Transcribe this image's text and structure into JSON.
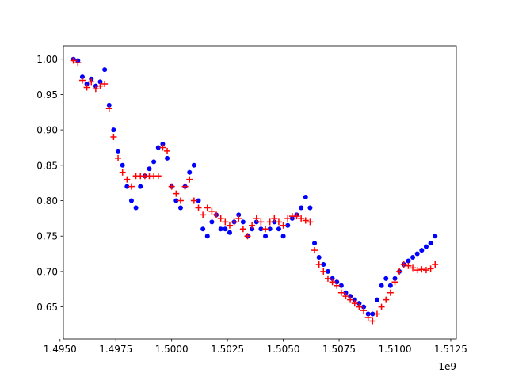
{
  "chart_data": {
    "type": "scatter",
    "title": "",
    "xlabel": "",
    "ylabel": "",
    "x_offset_text": "1e9",
    "xlim": [
      1.49515,
      1.51275
    ],
    "ylim": [
      0.6048,
      1.0187
    ],
    "x_ticks": [
      {
        "value": 1.495,
        "label": "1.4950"
      },
      {
        "value": 1.4975,
        "label": "1.4975"
      },
      {
        "value": 1.5,
        "label": "1.5000"
      },
      {
        "value": 1.5025,
        "label": "1.5025"
      },
      {
        "value": 1.505,
        "label": "1.5050"
      },
      {
        "value": 1.5075,
        "label": "1.5075"
      },
      {
        "value": 1.51,
        "label": "1.5100"
      },
      {
        "value": 1.5125,
        "label": "1.5125"
      }
    ],
    "y_ticks": [
      {
        "value": 0.65,
        "label": "0.65"
      },
      {
        "value": 0.7,
        "label": "0.70"
      },
      {
        "value": 0.75,
        "label": "0.75"
      },
      {
        "value": 0.8,
        "label": "0.80"
      },
      {
        "value": 0.85,
        "label": "0.85"
      },
      {
        "value": 0.9,
        "label": "0.90"
      },
      {
        "value": 0.95,
        "label": "0.95"
      },
      {
        "value": 1.0,
        "label": "1.00"
      }
    ],
    "grid": false,
    "series": [
      {
        "marker": "circle",
        "color": "#0000ff",
        "x": [
          1.4956,
          1.4958,
          1.496,
          1.4962,
          1.4964,
          1.4966,
          1.4968,
          1.497,
          1.4972,
          1.4974,
          1.4976,
          1.4978,
          1.498,
          1.4982,
          1.4984,
          1.4986,
          1.4988,
          1.499,
          1.4992,
          1.4994,
          1.4996,
          1.4998,
          1.5,
          1.5002,
          1.5004,
          1.5006,
          1.5008,
          1.501,
          1.5012,
          1.5014,
          1.5016,
          1.5018,
          1.502,
          1.5022,
          1.5024,
          1.5026,
          1.5028,
          1.503,
          1.5032,
          1.5034,
          1.5036,
          1.5038,
          1.504,
          1.5042,
          1.5044,
          1.5046,
          1.5048,
          1.505,
          1.5052,
          1.5054,
          1.5056,
          1.5058,
          1.506,
          1.5062,
          1.5064,
          1.5066,
          1.5068,
          1.507,
          1.5072,
          1.5074,
          1.5076,
          1.5078,
          1.508,
          1.5082,
          1.5084,
          1.5086,
          1.5088,
          1.509,
          1.5092,
          1.5094,
          1.5096,
          1.5098,
          1.51,
          1.5102,
          1.5104,
          1.5106,
          1.5108,
          1.511,
          1.5112,
          1.5114,
          1.5116,
          1.5118
        ],
        "y": [
          1.0,
          0.998,
          0.975,
          0.965,
          0.972,
          0.962,
          0.968,
          0.985,
          0.935,
          0.9,
          0.87,
          0.85,
          0.82,
          0.8,
          0.79,
          0.82,
          0.835,
          0.845,
          0.855,
          0.875,
          0.88,
          0.86,
          0.82,
          0.8,
          0.79,
          0.82,
          0.84,
          0.85,
          0.8,
          0.76,
          0.75,
          0.77,
          0.78,
          0.76,
          0.76,
          0.755,
          0.77,
          0.78,
          0.77,
          0.75,
          0.76,
          0.77,
          0.76,
          0.75,
          0.76,
          0.77,
          0.76,
          0.75,
          0.765,
          0.775,
          0.78,
          0.79,
          0.805,
          0.79,
          0.74,
          0.72,
          0.71,
          0.7,
          0.69,
          0.685,
          0.68,
          0.67,
          0.665,
          0.66,
          0.655,
          0.65,
          0.64,
          0.64,
          0.66,
          0.68,
          0.69,
          0.68,
          0.69,
          0.7,
          0.71,
          0.715,
          0.72,
          0.725,
          0.73,
          0.735,
          0.74,
          0.75
        ]
      },
      {
        "marker": "plus",
        "color": "#ff0000",
        "x": [
          1.4956,
          1.4958,
          1.496,
          1.4962,
          1.4964,
          1.4966,
          1.4968,
          1.497,
          1.4972,
          1.4974,
          1.4976,
          1.4978,
          1.498,
          1.4982,
          1.4984,
          1.4986,
          1.4988,
          1.499,
          1.4992,
          1.4994,
          1.4996,
          1.4998,
          1.5,
          1.5002,
          1.5004,
          1.5006,
          1.5008,
          1.501,
          1.5012,
          1.5014,
          1.5016,
          1.5018,
          1.502,
          1.5022,
          1.5024,
          1.5026,
          1.5028,
          1.503,
          1.5032,
          1.5034,
          1.5036,
          1.5038,
          1.504,
          1.5042,
          1.5044,
          1.5046,
          1.5048,
          1.505,
          1.5052,
          1.5054,
          1.5056,
          1.5058,
          1.506,
          1.5062,
          1.5064,
          1.5066,
          1.5068,
          1.507,
          1.5072,
          1.5074,
          1.5076,
          1.5078,
          1.508,
          1.5082,
          1.5084,
          1.5086,
          1.5088,
          1.509,
          1.5092,
          1.5094,
          1.5096,
          1.5098,
          1.51,
          1.5102,
          1.5104,
          1.5106,
          1.5108,
          1.511,
          1.5112,
          1.5114,
          1.5116,
          1.5118
        ],
        "y": [
          0.998,
          0.995,
          0.97,
          0.96,
          0.968,
          0.958,
          0.962,
          0.965,
          0.93,
          0.89,
          0.86,
          0.84,
          0.83,
          0.82,
          0.835,
          0.835,
          0.835,
          0.835,
          0.835,
          0.835,
          0.875,
          0.87,
          0.82,
          0.81,
          0.8,
          0.82,
          0.83,
          0.8,
          0.79,
          0.78,
          0.79,
          0.785,
          0.78,
          0.775,
          0.77,
          0.765,
          0.77,
          0.775,
          0.76,
          0.75,
          0.765,
          0.775,
          0.77,
          0.76,
          0.77,
          0.775,
          0.77,
          0.765,
          0.775,
          0.778,
          0.778,
          0.775,
          0.772,
          0.77,
          0.73,
          0.71,
          0.7,
          0.69,
          0.685,
          0.68,
          0.67,
          0.665,
          0.66,
          0.655,
          0.65,
          0.645,
          0.635,
          0.63,
          0.64,
          0.65,
          0.66,
          0.67,
          0.685,
          0.7,
          0.71,
          0.708,
          0.705,
          0.702,
          0.703,
          0.702,
          0.704,
          0.71
        ]
      }
    ]
  }
}
